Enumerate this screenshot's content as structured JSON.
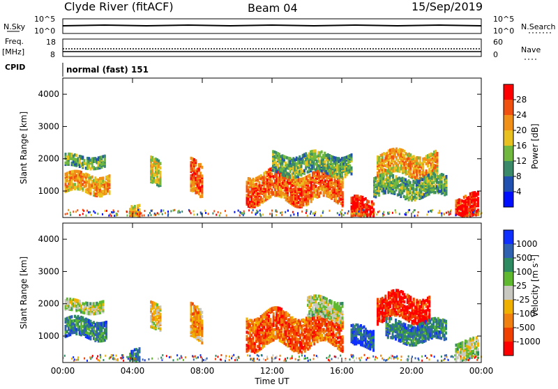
{
  "header": {
    "title": "Clyde River (fitACF)",
    "beam": "Beam 04",
    "date": "15/Sep/2019"
  },
  "top_strips": {
    "nsky_label": "N.Sky",
    "nsky_ticks": [
      "10^5",
      "10^0"
    ],
    "nsearch_label": "N.Search",
    "nsearch_ticks": [
      "10^5",
      "10^0"
    ],
    "freq_label": "Freq.",
    "freq_unit": "[MHz]",
    "freq_ticks": [
      "18",
      "8"
    ],
    "nave_label": "Nave",
    "nave_ticks": [
      "60",
      "0"
    ],
    "cpid_label": "CPID",
    "cpid_value": "normal (fast) 151"
  },
  "chart_data": [
    {
      "type": "heatmap",
      "panel": "power",
      "ylabel": "Slant Range [km]",
      "xlabel": "",
      "ylim": [
        180,
        4500
      ],
      "y_ticks": [
        "1000",
        "2000",
        "3000",
        "4000"
      ],
      "x_ticks": [
        "00:00",
        "04:00",
        "08:00",
        "12:00",
        "16:00",
        "20:00",
        "00:00"
      ],
      "colorbar_label": "Power [dB]",
      "colorbar_ticks": [
        "4",
        "8",
        "12",
        "16",
        "20",
        "24",
        "28"
      ],
      "colors": [
        "#0010ff",
        "#2050b0",
        "#3a8a6a",
        "#70b840",
        "#e8c020",
        "#f09018",
        "#f05010",
        "#ff0000"
      ],
      "echo_bands": [
        {
          "t_start": 0.1,
          "t_end": 2.7,
          "r_center": 1200,
          "r_width": 280,
          "level": 5
        },
        {
          "t_start": 0.1,
          "t_end": 2.4,
          "r_center": 1900,
          "r_width": 180,
          "level": 3
        },
        {
          "t_start": 3.8,
          "t_end": 4.4,
          "r_center": 400,
          "r_width": 200,
          "level": 5
        },
        {
          "t_start": 5.0,
          "t_end": 5.6,
          "r_center": 1500,
          "r_width": 400,
          "level": 4
        },
        {
          "t_start": 7.3,
          "t_end": 8.0,
          "r_center": 1300,
          "r_width": 500,
          "level": 6
        },
        {
          "t_start": 10.5,
          "t_end": 16.0,
          "r_center": 1100,
          "r_width": 450,
          "level": 6
        },
        {
          "t_start": 12.0,
          "t_end": 16.5,
          "r_center": 1800,
          "r_width": 300,
          "level": 3
        },
        {
          "t_start": 16.5,
          "t_end": 17.8,
          "r_center": 400,
          "r_width": 300,
          "level": 7
        },
        {
          "t_start": 18.0,
          "t_end": 21.5,
          "r_center": 1800,
          "r_width": 350,
          "level": 5
        },
        {
          "t_start": 17.8,
          "t_end": 22.0,
          "r_center": 1100,
          "r_width": 300,
          "level": 3
        },
        {
          "t_start": 22.5,
          "t_end": 23.8,
          "r_center": 450,
          "r_width": 350,
          "level": 7
        }
      ]
    },
    {
      "type": "heatmap",
      "panel": "velocity",
      "ylabel": "Slant Range [km]",
      "xlabel": "Time UT",
      "ylim": [
        180,
        4500
      ],
      "y_ticks": [
        "1000",
        "2000",
        "3000",
        "4000"
      ],
      "x_ticks": [
        "00:00",
        "04:00",
        "08:00",
        "12:00",
        "16:00",
        "20:00",
        "00:00"
      ],
      "colorbar_label": "Velocity [m s",
      "colorbar_unit_sup": "-1",
      "colorbar_ticks": [
        "1000",
        "500",
        "100",
        "25",
        "-25",
        "-100",
        "-500",
        "-1000"
      ],
      "colors": [
        "#1030ff",
        "#3060b0",
        "#2e8a60",
        "#60b830",
        "#c8c8c0",
        "#f0b000",
        "#f08010",
        "#f04000",
        "#ff0000"
      ],
      "echo_bands": [
        {
          "t_start": 0.1,
          "t_end": 2.5,
          "r_center": 1200,
          "r_width": 280,
          "level": 2
        },
        {
          "t_start": 0.1,
          "t_end": 2.3,
          "r_center": 1900,
          "r_width": 180,
          "level": 4
        },
        {
          "t_start": 3.8,
          "t_end": 4.4,
          "r_center": 450,
          "r_width": 200,
          "level": 2
        },
        {
          "t_start": 5.0,
          "t_end": 5.6,
          "r_center": 1500,
          "r_width": 400,
          "level": 5
        },
        {
          "t_start": 7.3,
          "t_end": 8.0,
          "r_center": 1300,
          "r_width": 500,
          "level": 6
        },
        {
          "t_start": 10.5,
          "t_end": 16.0,
          "r_center": 1150,
          "r_width": 500,
          "level": 7
        },
        {
          "t_start": 14.0,
          "t_end": 16.0,
          "r_center": 1800,
          "r_width": 300,
          "level": 4
        },
        {
          "t_start": 16.5,
          "t_end": 17.8,
          "r_center": 900,
          "r_width": 300,
          "level": 1
        },
        {
          "t_start": 18.0,
          "t_end": 21.0,
          "r_center": 1850,
          "r_width": 400,
          "level": 8
        },
        {
          "t_start": 18.5,
          "t_end": 22.0,
          "r_center": 1100,
          "r_width": 300,
          "level": 2
        },
        {
          "t_start": 22.5,
          "t_end": 23.8,
          "r_center": 500,
          "r_width": 300,
          "level": 4
        }
      ]
    }
  ]
}
